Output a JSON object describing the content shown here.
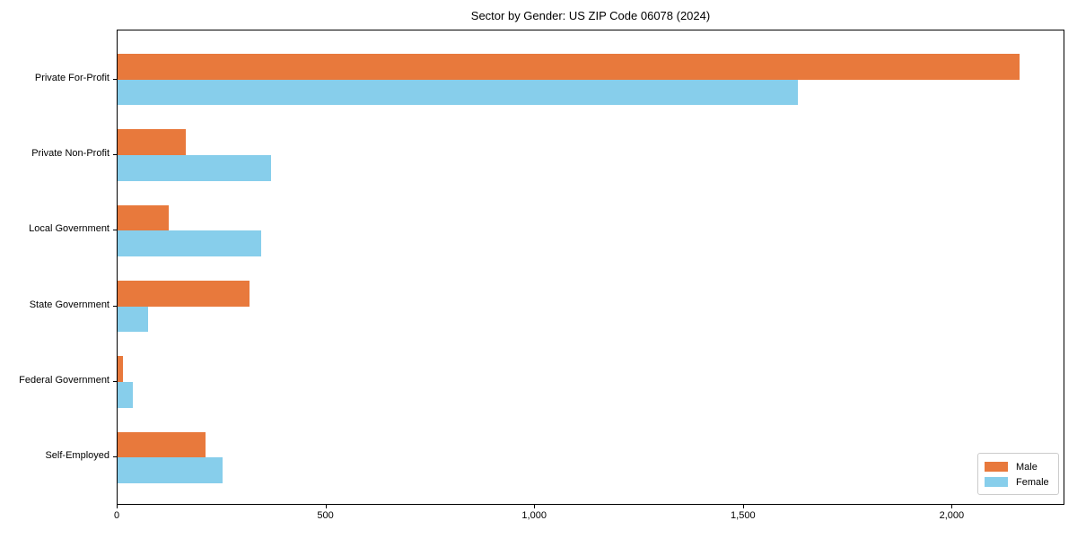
{
  "chart_data": {
    "type": "bar",
    "orientation": "horizontal",
    "title": "Sector by Gender: US ZIP Code 06078 (2024)",
    "categories": [
      "Private For-Profit",
      "Private Non-Profit",
      "Local Government",
      "State Government",
      "Federal Government",
      "Self-Employed"
    ],
    "series": [
      {
        "name": "Male",
        "color": "#e8793c",
        "values": [
          2160,
          163,
          122,
          315,
          12,
          210
        ]
      },
      {
        "name": "Female",
        "color": "#87ceeb",
        "values": [
          1630,
          367,
          343,
          74,
          37,
          252
        ]
      }
    ],
    "xlabel": "",
    "ylabel": "",
    "xlim": [
      0,
      2270
    ],
    "xticks": [
      0,
      500,
      1000,
      1500,
      2000
    ],
    "xtick_labels": [
      "0",
      "500",
      "1,000",
      "1,500",
      "2,000"
    ],
    "legend_position": "lower-right",
    "grid": false,
    "background_color": "#ffffff",
    "spine_color": "#000000"
  }
}
